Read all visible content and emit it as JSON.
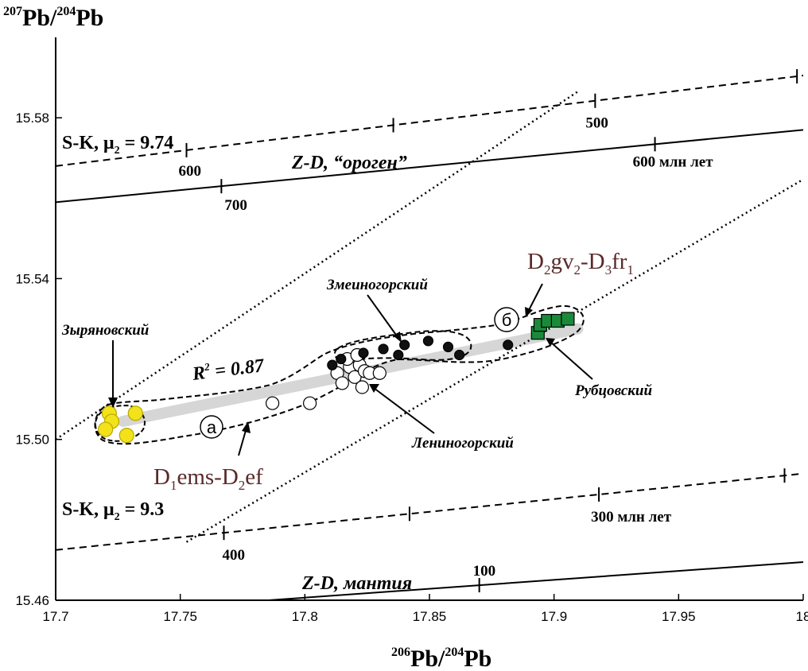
{
  "chart_data": {
    "type": "scatter",
    "xlabel": {
      "sup": "206",
      "base": "Pb/",
      "sup2": "204",
      "base2": "Pb"
    },
    "ylabel": {
      "sup": "207",
      "base": "Pb/",
      "sup2": "204",
      "base2": "Pb"
    },
    "xlim": [
      17.7,
      18.0
    ],
    "ylim": [
      15.46,
      15.6
    ],
    "xticks": [
      17.7,
      17.75,
      17.8,
      17.85,
      17.9,
      17.95,
      18.0
    ],
    "xtick_labels": [
      "17.7",
      "17.75",
      "17.8",
      "17.85",
      "17.9",
      "17.95",
      "18"
    ],
    "yticks": [
      15.46,
      15.5,
      15.54,
      15.58
    ],
    "ytick_labels": [
      "15.46",
      "15.50",
      "15.54",
      "15.58"
    ],
    "grid": false,
    "series": [
      {
        "name": "Зыряновский",
        "marker": "circle",
        "color": "#f2e21a",
        "x": [
          17.7215,
          17.7225,
          17.732,
          17.72,
          17.7285
        ],
        "y": [
          15.5065,
          15.5045,
          15.5065,
          15.5025,
          15.501
        ]
      },
      {
        "name": "Лениногорский",
        "marker": "circle",
        "color": "#ffffff",
        "x": [
          17.787,
          17.802,
          17.813,
          17.818,
          17.82,
          17.822,
          17.824,
          17.826,
          17.83,
          17.815,
          17.823,
          17.817,
          17.821
        ],
        "y": [
          15.509,
          15.509,
          15.5165,
          15.518,
          15.5155,
          15.5185,
          15.517,
          15.5165,
          15.5165,
          15.514,
          15.513,
          15.52,
          15.521
        ]
      },
      {
        "name": "Змеиногорский",
        "marker": "circle",
        "color": "#111111",
        "x": [
          17.811,
          17.8145,
          17.8235,
          17.8315,
          17.8375,
          17.84,
          17.8495,
          17.8575,
          17.862,
          17.8815
        ],
        "y": [
          15.5185,
          15.52,
          15.5215,
          15.5225,
          15.521,
          15.5235,
          15.5245,
          15.523,
          15.521,
          15.5235
        ]
      },
      {
        "name": "Рубцовский",
        "marker": "square",
        "color": "#1a8a3a",
        "x": [
          17.8935,
          17.8945,
          17.8975,
          17.9015,
          17.9055
        ],
        "y": [
          15.5265,
          15.5285,
          15.5295,
          15.5295,
          15.53
        ]
      }
    ],
    "reference_lines": [
      {
        "name": "Z-D, “ороген”",
        "style": "solid",
        "x": [
          17.7,
          18.0
        ],
        "y": [
          15.559,
          15.577
        ],
        "ticks": [
          {
            "x": 17.7665,
            "label": "700"
          },
          {
            "x": 17.9405,
            "label": "600 млн лет"
          }
        ]
      },
      {
        "name": "S-K, μ₂ = 9.74",
        "style": "dashed",
        "x": [
          17.7,
          18.0
        ],
        "y": [
          15.568,
          15.5905
        ],
        "ticks": [
          {
            "x": 17.7525,
            "label": "600"
          },
          {
            "x": 17.8355,
            "label": ""
          },
          {
            "x": 17.9165,
            "label": "500"
          },
          {
            "x": 17.9975,
            "label": ""
          }
        ]
      },
      {
        "name": "S-K, μ₂ = 9.3",
        "style": "dashed",
        "x": [
          17.7,
          18.0
        ],
        "y": [
          15.4725,
          15.4915
        ],
        "ticks": [
          {
            "x": 17.7675,
            "label": "400"
          },
          {
            "x": 17.842,
            "label": ""
          },
          {
            "x": 17.918,
            "label": "300 млн лет"
          },
          {
            "x": 17.9925,
            "label": ""
          }
        ]
      },
      {
        "name": "Z-D, мантия",
        "style": "solid",
        "x": [
          17.7855,
          18.0
        ],
        "y": [
          15.46,
          15.4695
        ],
        "ticks": [
          {
            "x": 17.87,
            "label": "100"
          }
        ]
      },
      {
        "name": "upper bound",
        "style": "dotted",
        "x": [
          17.7,
          17.9095
        ],
        "y": [
          15.5,
          15.5865
        ],
        "ticks": []
      },
      {
        "name": "lower bound",
        "style": "dotted",
        "x": [
          17.7525,
          17.9995
        ],
        "y": [
          15.4745,
          15.5645
        ],
        "ticks": []
      }
    ],
    "trend": {
      "label_base": "R",
      "label_sup": "2",
      "label_rest": " = 0.87",
      "x": [
        17.727,
        17.9095
      ],
      "y": [
        15.5045,
        15.5275
      ]
    },
    "annotations": {
      "zyr": "Зыряновский",
      "len": "Лениногорский",
      "zme": "Змеиногорский",
      "rub": "Рубцовский",
      "a": "а",
      "b": "б",
      "age_low": {
        "p1": "D",
        "s1": "1",
        "p2": "ems-D",
        "s2": "2",
        "p3": "ef"
      },
      "age_high": {
        "p1": "D",
        "s1": "2",
        "p2": "gv",
        "s2": "2",
        "p3": "-D",
        "s3": "3",
        "p4": "fr",
        "s4": "1"
      },
      "sk974": {
        "a": "S-K, μ",
        "sub": "2",
        "b": " = 9.74"
      },
      "sk93": {
        "a": "S-K, μ",
        "sub": "2",
        "b": " = 9.3"
      },
      "zd_orogen": "Z-D, “ороген”",
      "zd_mantle": "Z-D, мантия"
    }
  }
}
